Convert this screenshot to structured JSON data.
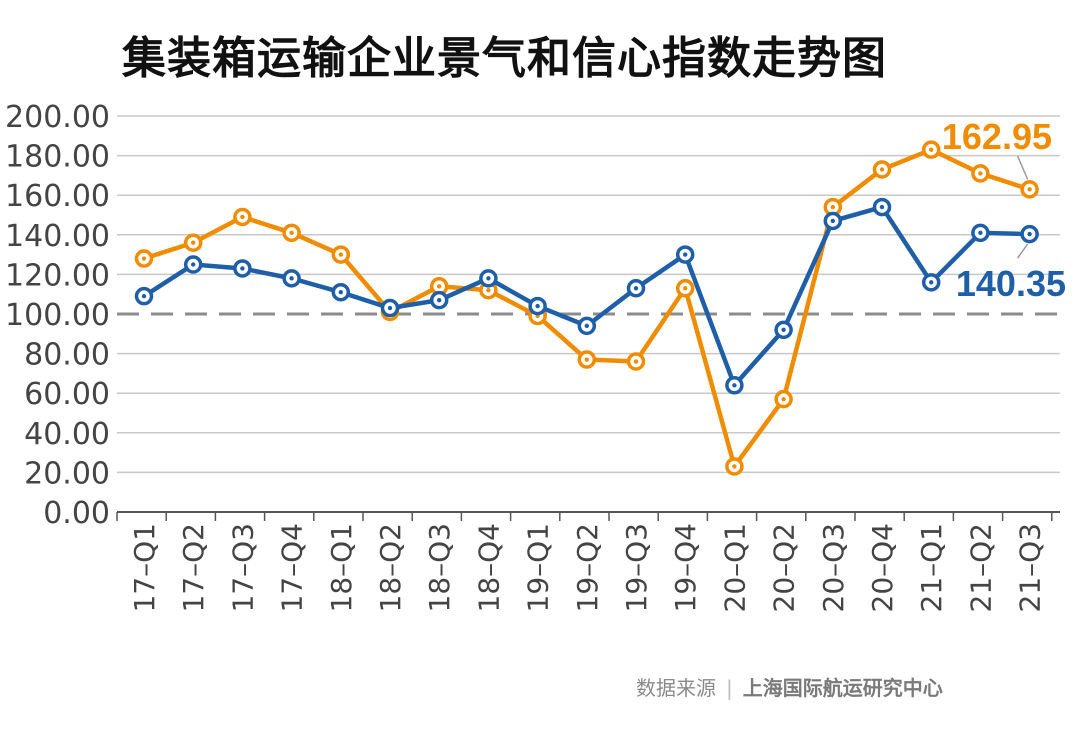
{
  "chart_data": {
    "type": "line",
    "title": "集装箱运输企业景气和信心指数走势图",
    "categories": [
      "17–Q1",
      "17–Q2",
      "17–Q3",
      "17–Q4",
      "18–Q1",
      "18–Q2",
      "18–Q3",
      "18–Q4",
      "19–Q1",
      "19–Q2",
      "19–Q3",
      "19–Q4",
      "20–Q1",
      "20–Q2",
      "20–Q3",
      "20–Q4",
      "21–Q1",
      "21–Q2",
      "21–Q3"
    ],
    "y_tick_labels": [
      "0.00",
      "20.00",
      "40.00",
      "60.00",
      "80.00",
      "100.00",
      "120.00",
      "140.00",
      "160.00",
      "180.00",
      "200.00"
    ],
    "ylim": [
      0,
      200
    ],
    "reference_line": 100,
    "grid": true,
    "series": [
      {
        "color": "#f08c00",
        "values": [
          128,
          136,
          149,
          141,
          130,
          101,
          114,
          112,
          99,
          77,
          76,
          113,
          23,
          57,
          154,
          173,
          183,
          171,
          162.95
        ],
        "end_label": "162.95"
      },
      {
        "color": "#1f5fa8",
        "values": [
          109,
          125,
          123,
          118,
          111,
          103,
          107,
          118,
          104,
          94,
          113,
          130,
          64,
          92,
          147,
          154,
          116,
          141,
          140.35
        ],
        "end_label": "140.35"
      }
    ]
  },
  "source": {
    "label": "数据来源",
    "separator": "|",
    "org": "上海国际航运研究中心"
  }
}
